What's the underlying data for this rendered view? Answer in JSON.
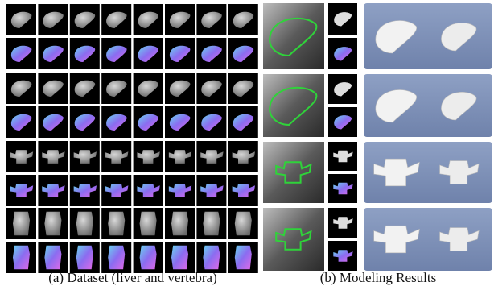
{
  "captions": {
    "a": "(a) Dataset (liver and vertebra)",
    "b": "(b) Modeling Results"
  }
}
